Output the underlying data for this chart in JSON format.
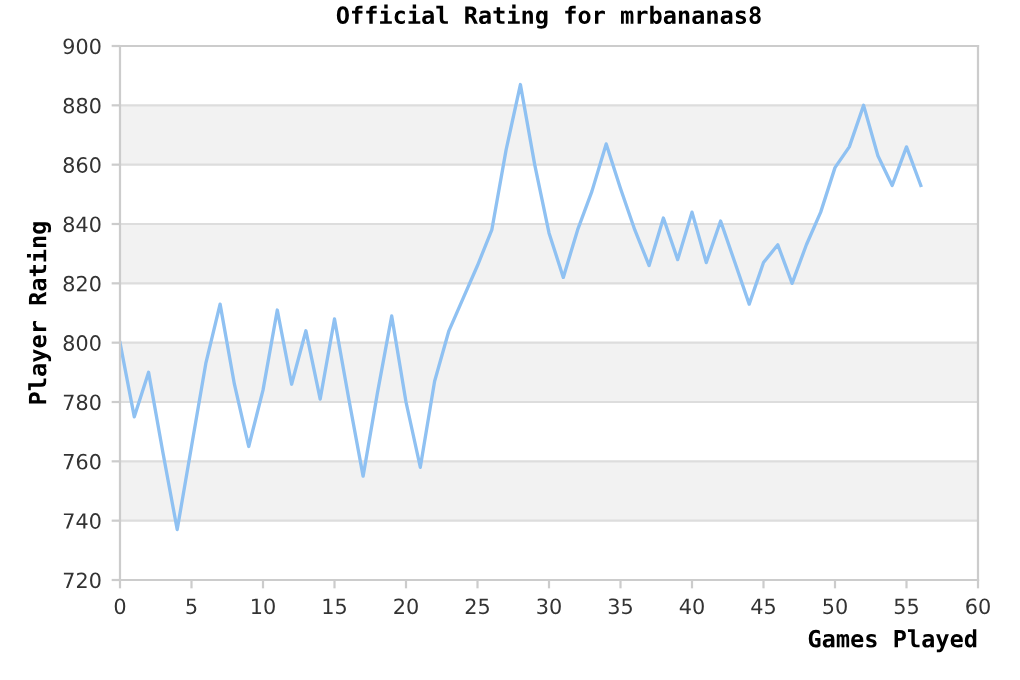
{
  "chart_data": {
    "type": "line",
    "title": "Official Rating for mrbananas8",
    "xlabel": "Games Played",
    "ylabel": "Player Rating",
    "x": [
      0,
      1,
      2,
      3,
      4,
      5,
      6,
      7,
      8,
      9,
      10,
      11,
      12,
      13,
      14,
      15,
      16,
      17,
      18,
      19,
      20,
      21,
      22,
      23,
      24,
      25,
      26,
      27,
      28,
      29,
      30,
      31,
      32,
      33,
      34,
      35,
      36,
      37,
      38,
      39,
      40,
      41,
      42,
      43,
      44,
      45,
      46,
      47,
      48,
      49,
      50,
      51,
      52,
      53,
      54,
      55,
      56
    ],
    "series": [
      {
        "color": "#8fc1f2",
        "values": [
          800,
          775,
          790,
          763,
          737,
          765,
          793,
          813,
          786,
          765,
          784,
          811,
          786,
          804,
          781,
          808,
          781,
          755,
          783,
          809,
          780,
          758,
          787,
          804,
          815,
          826,
          838,
          865,
          887,
          860,
          837,
          822,
          838,
          851,
          867,
          852,
          838,
          826,
          842,
          828,
          844,
          827,
          841,
          827,
          813,
          827,
          833,
          820,
          833,
          844,
          859,
          866,
          880,
          863,
          853,
          866,
          853
        ]
      }
    ],
    "xlim": [
      0,
      60
    ],
    "xticks": [
      0,
      5,
      10,
      15,
      20,
      25,
      30,
      35,
      40,
      45,
      50,
      55,
      60
    ],
    "ylim": [
      720,
      900
    ],
    "yticks": [
      720,
      740,
      760,
      780,
      800,
      820,
      840,
      860,
      880,
      900
    ],
    "grid": "y",
    "legend": false,
    "marker": "none",
    "line_style": "solid"
  }
}
